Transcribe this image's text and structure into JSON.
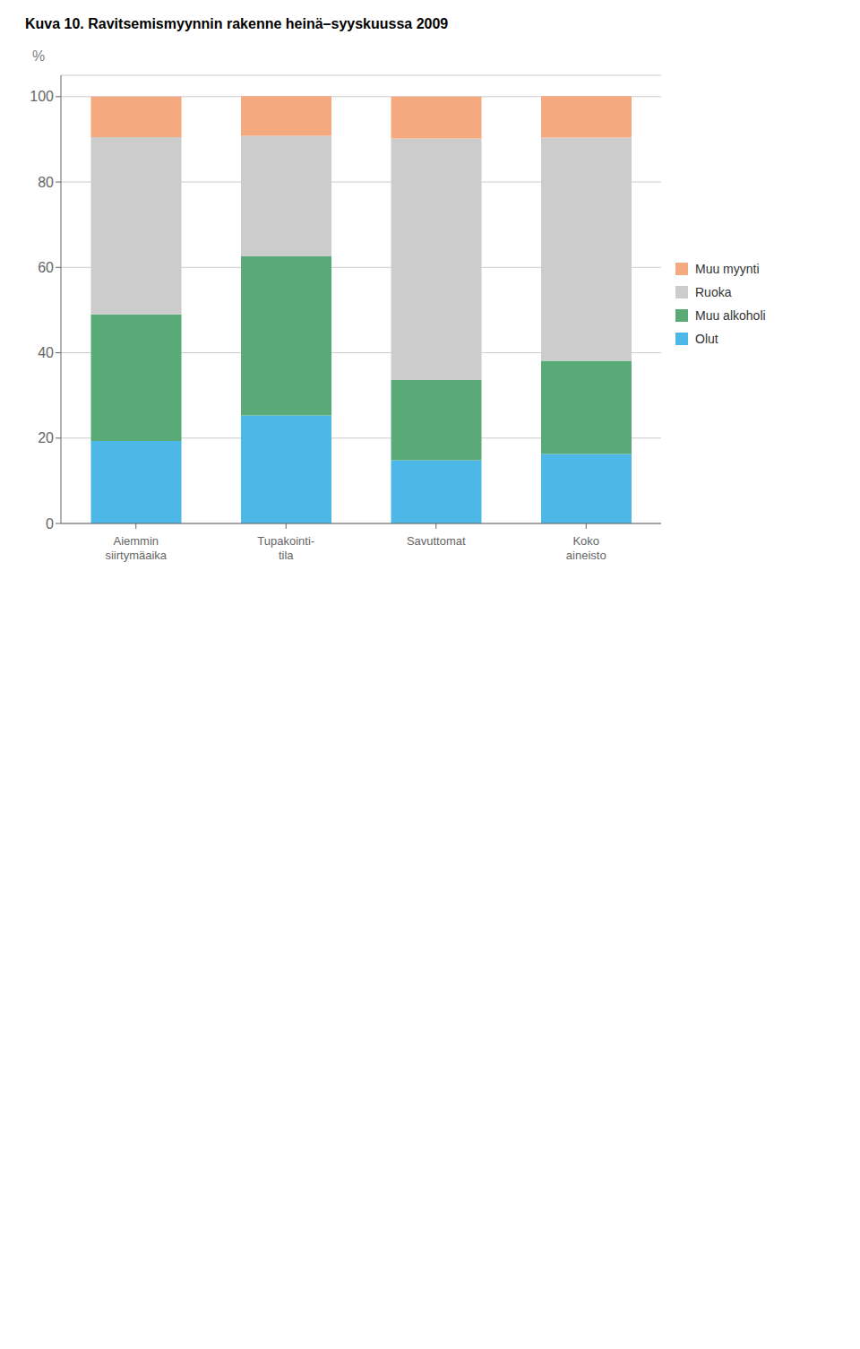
{
  "chart_data": {
    "type": "bar",
    "title": "Kuva 10. Ravitsemismyynnin rakenne heinä–syyskuussa 2009",
    "ylabel": "%",
    "categories": [
      "Aiemmin\nsiirtymäaika",
      "Tupakointi-\ntila",
      "Savuttomat",
      "Koko\naineisto"
    ],
    "series": [
      {
        "name": "Olut",
        "color": "#4db8e8",
        "values": [
          19.3,
          25.3,
          14.8,
          16.3
        ]
      },
      {
        "name": "Muu alkoholi",
        "color": "#5aaa78",
        "values": [
          29.7,
          37.3,
          18.8,
          21.8
        ]
      },
      {
        "name": "Ruoka",
        "color": "#cccccc",
        "values": [
          41.5,
          28.2,
          56.6,
          52.3
        ]
      },
      {
        "name": "Muu myynti",
        "color": "#f5a97f",
        "values": [
          9.5,
          9.3,
          9.8,
          9.7
        ]
      }
    ],
    "ylim": [
      0,
      105
    ],
    "yticks": [
      0,
      20,
      40,
      60,
      80,
      100
    ],
    "grid": true,
    "stacked": true,
    "legend": "right"
  }
}
